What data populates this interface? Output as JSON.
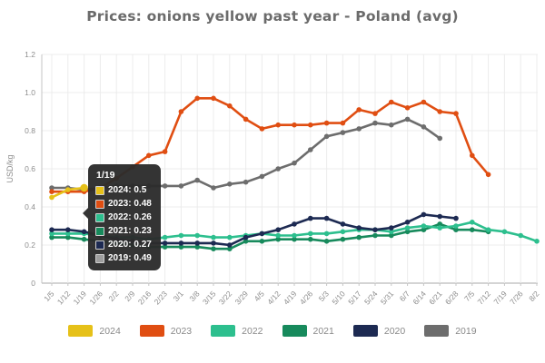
{
  "title": "Prices: onions yellow past year - Poland (avg)",
  "chart_data": {
    "type": "line",
    "title": "Prices: onions yellow past year - Poland (avg)",
    "xlabel": "",
    "ylabel": "USD/kg",
    "ylim": [
      0,
      1.2
    ],
    "grid": true,
    "legend_position": "bottom",
    "y_ticks": [
      {
        "value": 1.2,
        "label": "1.2"
      },
      {
        "value": 1.0,
        "label": "1.0"
      },
      {
        "value": 0.8,
        "label": "0.8"
      },
      {
        "value": 0.6,
        "label": "0.6"
      },
      {
        "value": 0.4,
        "label": "0.4"
      },
      {
        "value": 0.2,
        "label": "0.2"
      },
      {
        "value": 0.0,
        "label": "0"
      }
    ],
    "categories": [
      "1/5",
      "1/12",
      "1/19",
      "1/26",
      "2/2",
      "2/9",
      "2/16",
      "2/23",
      "3/1",
      "3/8",
      "3/15",
      "3/22",
      "3/29",
      "4/5",
      "4/12",
      "4/19",
      "4/26",
      "5/3",
      "5/10",
      "5/17",
      "5/24",
      "5/31",
      "6/7",
      "6/14",
      "6/21",
      "6/28",
      "7/5",
      "7/12",
      "7/19",
      "7/26",
      "8/2"
    ],
    "series": [
      {
        "name": "2024",
        "color": "#e6c119",
        "values": [
          0.45,
          0.49,
          0.5,
          null,
          null,
          null,
          null,
          null,
          null,
          null,
          null,
          null,
          null,
          null,
          null,
          null,
          null,
          null,
          null,
          null,
          null,
          null,
          null,
          null,
          null,
          null,
          null,
          null,
          null,
          null,
          null
        ]
      },
      {
        "name": "2023",
        "color": "#e04e12",
        "values": [
          0.48,
          0.48,
          0.48,
          0.5,
          0.55,
          0.61,
          0.67,
          0.69,
          0.9,
          0.97,
          0.97,
          0.93,
          0.86,
          0.81,
          0.83,
          0.83,
          0.83,
          0.84,
          0.84,
          0.91,
          0.89,
          0.95,
          0.92,
          0.95,
          0.9,
          0.89,
          0.67,
          0.57,
          null,
          null,
          null
        ]
      },
      {
        "name": "2022",
        "color": "#2dbf8e",
        "values": [
          0.26,
          0.26,
          0.26,
          0.25,
          0.24,
          0.24,
          0.23,
          0.24,
          0.25,
          0.25,
          0.24,
          0.24,
          0.25,
          0.26,
          0.25,
          0.25,
          0.26,
          0.26,
          0.27,
          0.28,
          0.28,
          0.27,
          0.29,
          0.3,
          0.29,
          0.3,
          0.32,
          0.28,
          0.27,
          0.25,
          0.22
        ]
      },
      {
        "name": "2021",
        "color": "#178a5c",
        "values": [
          0.24,
          0.24,
          0.23,
          0.22,
          0.21,
          0.2,
          0.19,
          0.19,
          0.19,
          0.19,
          0.18,
          0.18,
          0.22,
          0.22,
          0.23,
          0.23,
          0.23,
          0.22,
          0.23,
          0.24,
          0.25,
          0.25,
          0.27,
          0.28,
          0.31,
          0.28,
          0.28,
          0.27,
          null,
          null,
          null
        ]
      },
      {
        "name": "2020",
        "color": "#1d2a52",
        "values": [
          0.28,
          0.28,
          0.27,
          0.25,
          0.23,
          0.22,
          0.21,
          0.21,
          0.21,
          0.21,
          0.21,
          0.2,
          0.24,
          0.26,
          0.28,
          0.31,
          0.34,
          0.34,
          0.31,
          0.29,
          0.28,
          0.29,
          0.32,
          0.36,
          0.35,
          0.34,
          null,
          null,
          null,
          null,
          null
        ]
      },
      {
        "name": "2019",
        "color": "#6d6d6d",
        "values": [
          0.5,
          0.5,
          0.49,
          0.5,
          0.51,
          0.51,
          0.51,
          0.51,
          0.51,
          0.54,
          0.5,
          0.52,
          0.53,
          0.56,
          0.6,
          0.63,
          0.7,
          0.77,
          0.79,
          0.81,
          0.84,
          0.83,
          0.86,
          0.82,
          0.76,
          null,
          null,
          null,
          null,
          null,
          null
        ]
      }
    ],
    "draw_order": [
      "2019",
      "2023",
      "2021",
      "2022",
      "2020",
      "2024"
    ],
    "active_point": {
      "series": "2024",
      "category": "1/19"
    }
  },
  "tooltip": {
    "header": "1/19",
    "rows": [
      {
        "label": "2024",
        "value": "0.5",
        "color": "#e6c119"
      },
      {
        "label": "2023",
        "value": "0.48",
        "color": "#e04e12"
      },
      {
        "label": "2022",
        "value": "0.26",
        "color": "#2dbf8e"
      },
      {
        "label": "2021",
        "value": "0.23",
        "color": "#178a5c"
      },
      {
        "label": "2020",
        "value": "0.27",
        "color": "#1d2a52"
      },
      {
        "label": "2019",
        "value": "0.49",
        "color": "#9e9e9e"
      }
    ]
  },
  "legend": {
    "items": [
      {
        "label": "2024",
        "color": "#e6c119"
      },
      {
        "label": "2023",
        "color": "#e04e12"
      },
      {
        "label": "2022",
        "color": "#2dbf8e"
      },
      {
        "label": "2021",
        "color": "#178a5c"
      },
      {
        "label": "2020",
        "color": "#1d2a52"
      },
      {
        "label": "2019",
        "color": "#6d6d6d"
      }
    ]
  },
  "colors": {
    "grid": "#ececec",
    "axis": "#c4c4c4",
    "baseline": "#a8a8a8",
    "tick_text": "#8e8e8e",
    "title_text": "#6b6b6b"
  }
}
